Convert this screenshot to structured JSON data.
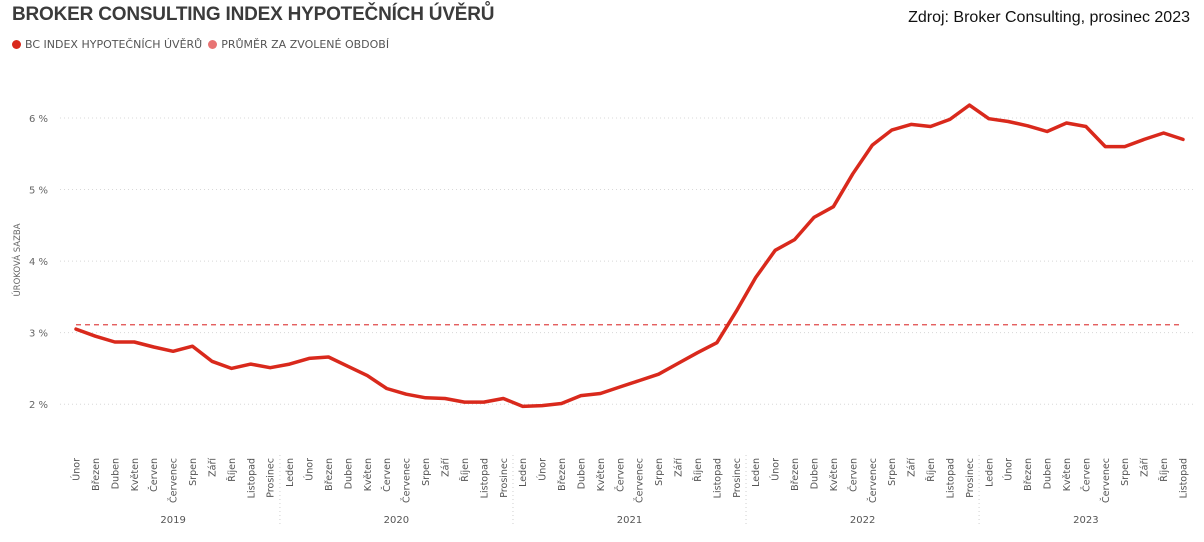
{
  "header": {
    "title": "BROKER CONSULTING INDEX HYPOTEČNÍCH ÚVĚRŮ",
    "source": "Zdroj: Broker Consulting, prosinec 2023"
  },
  "legend": [
    {
      "label": "BC INDEX HYPOTEČNÍCH ÚVĚRŮ",
      "color": "#d9291c"
    },
    {
      "label": "PRŮMĚR ZA ZVOLENÉ OBDOBÍ",
      "color": "#e87474"
    }
  ],
  "chart_data": {
    "type": "line",
    "ylabel": "ÚROKOVÁ SAZBA",
    "ylim": [
      1.5,
      6.6
    ],
    "yticks": [
      {
        "value": 2,
        "label": "2 %"
      },
      {
        "value": 3,
        "label": "3 %"
      },
      {
        "value": 4,
        "label": "4 %"
      },
      {
        "value": 5,
        "label": "5 %"
      },
      {
        "value": 6,
        "label": "6 %"
      }
    ],
    "grid": true,
    "legend_position": "top-left",
    "categories": [
      "Únor",
      "Březen",
      "Duben",
      "Květen",
      "Červen",
      "Červenec",
      "Srpen",
      "Září",
      "Říjen",
      "Listopad",
      "Prosinec",
      "Leden",
      "Únor",
      "Březen",
      "Duben",
      "Květen",
      "Červen",
      "Červenec",
      "Srpen",
      "Září",
      "Říjen",
      "Listopad",
      "Prosinec",
      "Leden",
      "Únor",
      "Březen",
      "Duben",
      "Květen",
      "Červen",
      "Červenec",
      "Srpen",
      "Září",
      "Říjen",
      "Listopad",
      "Prosinec",
      "Leden",
      "Únor",
      "Březen",
      "Duben",
      "Květen",
      "Červen",
      "Červenec",
      "Srpen",
      "Září",
      "Říjen",
      "Listopad",
      "Prosinec",
      "Leden",
      "Únor",
      "Březen",
      "Duben",
      "Květen",
      "Červen",
      "Červenec",
      "Srpen",
      "Září",
      "Říjen",
      "Listopad"
    ],
    "years": [
      {
        "label": "2019",
        "start": 0,
        "end": 10
      },
      {
        "label": "2020",
        "start": 11,
        "end": 22
      },
      {
        "label": "2021",
        "start": 23,
        "end": 34
      },
      {
        "label": "2022",
        "start": 35,
        "end": 46
      },
      {
        "label": "2023",
        "start": 47,
        "end": 57
      }
    ],
    "series": [
      {
        "name": "BC INDEX HYPOTEČNÍCH ÚVĚRŮ",
        "color": "#d9291c",
        "values": [
          3.05,
          2.95,
          2.87,
          2.87,
          2.8,
          2.74,
          2.81,
          2.6,
          2.5,
          2.56,
          2.51,
          2.56,
          2.64,
          2.66,
          2.53,
          2.4,
          2.22,
          2.14,
          2.09,
          2.08,
          2.03,
          2.03,
          2.08,
          1.97,
          1.98,
          2.01,
          2.12,
          2.15,
          2.24,
          2.33,
          2.42,
          2.57,
          2.72,
          2.86,
          3.3,
          3.77,
          4.15,
          4.3,
          4.61,
          4.76,
          5.22,
          5.62,
          5.83,
          5.91,
          5.88,
          5.98,
          6.18,
          5.99,
          5.95,
          5.89,
          5.81,
          5.93,
          5.88,
          5.6,
          5.6,
          5.7,
          5.79,
          5.7
        ]
      }
    ],
    "average": {
      "name": "PRŮMĚR ZA ZVOLENÉ OBDOBÍ",
      "value": 3.11,
      "color": "#e04a4a"
    }
  }
}
